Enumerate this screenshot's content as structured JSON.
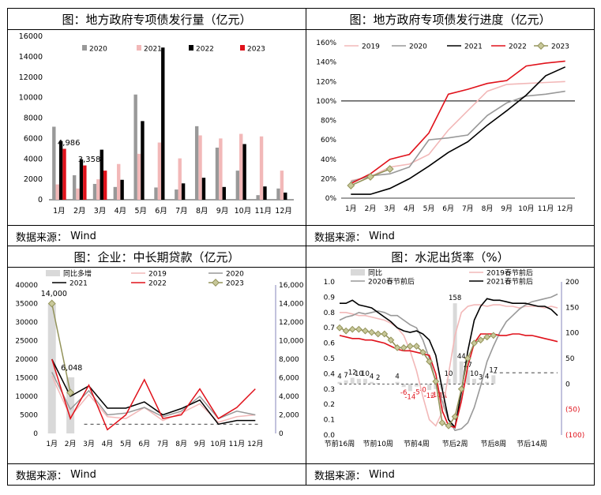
{
  "colors": {
    "c2019": "#f2b8b8",
    "c2020": "#999999",
    "c2021": "#000000",
    "c2022": "#e0121b",
    "c2023": "#93935a",
    "marker": "#c8c89a",
    "bg": "#ffffff"
  },
  "panels": {
    "p1": {
      "title": "图：地方政府专项债发行量（亿元）",
      "source_label": "数据来源：",
      "source_value": "Wind"
    },
    "p2": {
      "title": "图：地方政府专项债发行进度（亿元）",
      "source_label": "数据来源：",
      "source_value": "Wind"
    },
    "p3": {
      "title": "图：企业：中长期贷款（亿元）",
      "source_label": "数据来源：",
      "source_value": "Wind"
    },
    "p4": {
      "title": "图：水泥出货率（%）",
      "source_label": "数据来源：",
      "source_value": "Wind"
    }
  },
  "chart_data": [
    {
      "id": "issuance",
      "type": "bar",
      "categories": [
        "1月",
        "2月",
        "3月",
        "4月",
        "5月",
        "6月",
        "7月",
        "8月",
        "9月",
        "10月",
        "11月",
        "12月"
      ],
      "ylim": [
        0,
        16000
      ],
      "yticks": [
        0,
        2000,
        4000,
        6000,
        8000,
        10000,
        12000,
        14000,
        16000
      ],
      "series": [
        {
          "name": "2020",
          "color": "#999999",
          "values": [
            7150,
            2400,
            1550,
            1250,
            10300,
            1200,
            1000,
            7200,
            5100,
            2850,
            450,
            1100
          ]
        },
        {
          "name": "2021",
          "color": "#f2b8b8",
          "values": [
            1500,
            1100,
            2000,
            3500,
            4500,
            5600,
            4050,
            6300,
            6000,
            6450,
            6200,
            2850
          ]
        },
        {
          "name": "2022",
          "color": "#000000",
          "values": [
            5750,
            3950,
            4900,
            1950,
            7700,
            14900,
            1600,
            2150,
            1250,
            5450,
            1300,
            700
          ]
        },
        {
          "name": "2023",
          "color": "#e0121b",
          "values": [
            4986,
            3358,
            2850,
            null,
            null,
            null,
            null,
            null,
            null,
            null,
            null,
            null
          ]
        }
      ],
      "data_labels": [
        {
          "text": "4,986"
        },
        {
          "text": "3,358"
        }
      ]
    },
    {
      "id": "progress",
      "type": "line",
      "categories": [
        "1月",
        "2月",
        "3月",
        "4月",
        "5月",
        "6月",
        "7月",
        "8月",
        "9月",
        "10月",
        "11月",
        "12月"
      ],
      "ylim": [
        0,
        160
      ],
      "yticks": [
        "0%",
        "20%",
        "40%",
        "60%",
        "80%",
        "100%",
        "120%",
        "140%",
        "160%"
      ],
      "reference_line": 100,
      "series": [
        {
          "name": "2019",
          "color": "#f2b8b8",
          "values": [
            18,
            22,
            32,
            35,
            45,
            70,
            90,
            110,
            117,
            118,
            119,
            120
          ]
        },
        {
          "name": "2020",
          "color": "#999999",
          "values": [
            17,
            23,
            25,
            32,
            60,
            62,
            65,
            85,
            98,
            105,
            107,
            110
          ]
        },
        {
          "name": "2021",
          "color": "#000000",
          "values": [
            4,
            4,
            10,
            20,
            33,
            47,
            58,
            75,
            90,
            106,
            126,
            135
          ]
        },
        {
          "name": "2022",
          "color": "#e0121b",
          "values": [
            15,
            25,
            40,
            45,
            67,
            107,
            112,
            118,
            121,
            136,
            139,
            141
          ]
        },
        {
          "name": "2023",
          "color": "#93935a",
          "values": [
            13,
            22,
            30,
            null,
            null,
            null,
            null,
            null,
            null,
            null,
            null,
            null
          ]
        }
      ]
    },
    {
      "id": "loans",
      "type": "line",
      "categories": [
        "1月",
        "2月",
        "3月",
        "4月",
        "5月",
        "6月",
        "7月",
        "8月",
        "9月",
        "10月",
        "11月",
        "12月"
      ],
      "ylim": [
        0,
        40000
      ],
      "yticks": [
        "0",
        "5000",
        "10000",
        "15000",
        "20000",
        "25000",
        "30000",
        "35000",
        "40000"
      ],
      "y2lim": [
        0,
        16000
      ],
      "y2ticks": [
        "0",
        "2,000",
        "4,000",
        "6,000",
        "8,000",
        "10,000",
        "12,000",
        "14,000",
        "16,000"
      ],
      "bars": {
        "name": "同比多增",
        "color": "#d9d9d9",
        "values": [
          14000,
          6048,
          null,
          null,
          null,
          null,
          null,
          null,
          null,
          null,
          null,
          null
        ]
      },
      "series": [
        {
          "name": "2019",
          "color": "#f2b8b8",
          "values": [
            15500,
            4500,
            10500,
            4500,
            4000,
            7000,
            3500,
            5500,
            8000,
            3000,
            4500,
            5000
          ]
        },
        {
          "name": "2020",
          "color": "#999999",
          "values": [
            16500,
            6500,
            11500,
            5000,
            5500,
            7000,
            4500,
            6000,
            10000,
            4000,
            6000,
            5000
          ]
        },
        {
          "name": "2021",
          "color": "#000000",
          "values": [
            20000,
            10000,
            12800,
            6800,
            6800,
            8500,
            5000,
            6700,
            9000,
            2500,
            3500,
            3500
          ]
        },
        {
          "name": "2022",
          "color": "#e0121b",
          "values": [
            20000,
            4000,
            13000,
            1000,
            5000,
            14500,
            4000,
            5000,
            12000,
            4000,
            7000,
            12000
          ]
        },
        {
          "name": "2023",
          "color": "#93935a",
          "values": [
            35000,
            11000,
            null,
            null,
            null,
            null,
            null,
            null,
            null,
            null,
            null,
            null
          ]
        }
      ],
      "data_labels": [
        {
          "text": "14,000"
        },
        {
          "text": "6,048"
        }
      ]
    },
    {
      "id": "cement",
      "type": "line",
      "xticks": [
        "节前16周",
        "节前10周",
        "节前4周",
        "节后2周",
        "节后8周",
        "节后14周"
      ],
      "ylim": [
        0,
        1.0
      ],
      "yticks": [
        "0.0",
        "0.1",
        "0.2",
        "0.3",
        "0.4",
        "0.5",
        "0.6",
        "0.7",
        "0.8",
        "0.9",
        "1.0"
      ],
      "y2lim": [
        -100,
        200
      ],
      "y2ticks": [
        "(100)",
        "(50)",
        "0",
        "50",
        "100",
        "150",
        "200"
      ],
      "bars": {
        "name": "同比",
        "color": "#d9d9d9",
        "values": [
          4,
          7,
          12,
          10,
          10,
          4,
          2,
          0,
          0,
          4,
          -6,
          -14,
          -5,
          0,
          -12,
          -10,
          -11,
          10,
          158,
          44,
          27,
          10,
          3,
          4,
          17
        ]
      },
      "bar_labels": [
        "4",
        "7",
        "12",
        "10",
        "10",
        "4",
        "2",
        "",
        "",
        "4",
        "-6",
        "-14",
        "-5",
        "-0",
        "-12",
        "-10",
        "-11",
        "10",
        "158",
        "44",
        "27",
        "10",
        "3",
        "4",
        "17"
      ],
      "series": [
        {
          "name": "2019春节前后",
          "color": "#f2b8b8",
          "values": [
            0.8,
            0.8,
            0.79,
            0.78,
            0.78,
            0.77,
            0.76,
            0.75,
            0.73,
            0.7,
            0.65,
            0.55,
            0.42,
            0.25,
            0.1,
            0.06,
            0.15,
            0.4,
            0.65,
            0.8,
            0.84,
            0.85,
            0.85,
            0.84,
            0.85,
            0.85,
            0.84,
            0.84,
            0.83,
            0.84,
            0.84,
            0.84,
            0.83,
            0.84,
            0.83
          ]
        },
        {
          "name": "2020春节前后",
          "color": "#999999",
          "values": [
            0.75,
            0.77,
            0.78,
            0.8,
            0.79,
            0.8,
            0.81,
            0.8,
            0.78,
            0.78,
            0.75,
            0.72,
            0.7,
            0.62,
            0.5,
            0.35,
            0.22,
            0.1,
            0.03,
            0.04,
            0.08,
            0.18,
            0.32,
            0.48,
            0.58,
            0.67,
            0.74,
            0.78,
            0.82,
            0.85,
            0.87,
            0.88,
            0.89,
            0.9,
            0.92
          ]
        },
        {
          "name": "2021春节前后",
          "color": "#000000",
          "values": [
            0.86,
            0.86,
            0.88,
            0.85,
            0.84,
            0.83,
            0.8,
            0.77,
            0.74,
            0.7,
            0.68,
            0.67,
            0.68,
            0.66,
            0.62,
            0.52,
            0.3,
            0.1,
            0.05,
            0.28,
            0.55,
            0.75,
            0.84,
            0.89,
            0.88,
            0.88,
            0.87,
            0.86,
            0.86,
            0.86,
            0.85,
            0.84,
            0.84,
            0.82,
            0.78
          ]
        },
        {
          "name": "2022",
          "color": "#e0121b",
          "values": [
            0.65,
            0.64,
            0.63,
            0.63,
            0.62,
            0.62,
            0.61,
            0.6,
            0.58,
            0.56,
            0.55,
            0.55,
            0.54,
            0.53,
            0.52,
            0.4,
            0.16,
            0.06,
            0.05,
            0.22,
            0.45,
            0.6,
            0.66,
            0.66,
            0.66,
            0.65,
            0.65,
            0.66,
            0.66,
            0.65,
            0.65,
            0.64,
            0.63,
            0.62,
            0.61
          ]
        },
        {
          "name": "2023",
          "color": "#93935a",
          "values": [
            0.7,
            0.68,
            0.69,
            0.69,
            0.68,
            0.67,
            0.66,
            0.66,
            0.62,
            0.57,
            0.57,
            0.58,
            0.58,
            0.54,
            0.48,
            0.35,
            0.08,
            0.06,
            0.12,
            0.3,
            0.5,
            0.6,
            0.62,
            0.64,
            0.65,
            null,
            null,
            null,
            null,
            null,
            null,
            null,
            null,
            null,
            null
          ]
        }
      ],
      "dashed_ref": 0.42
    }
  ]
}
